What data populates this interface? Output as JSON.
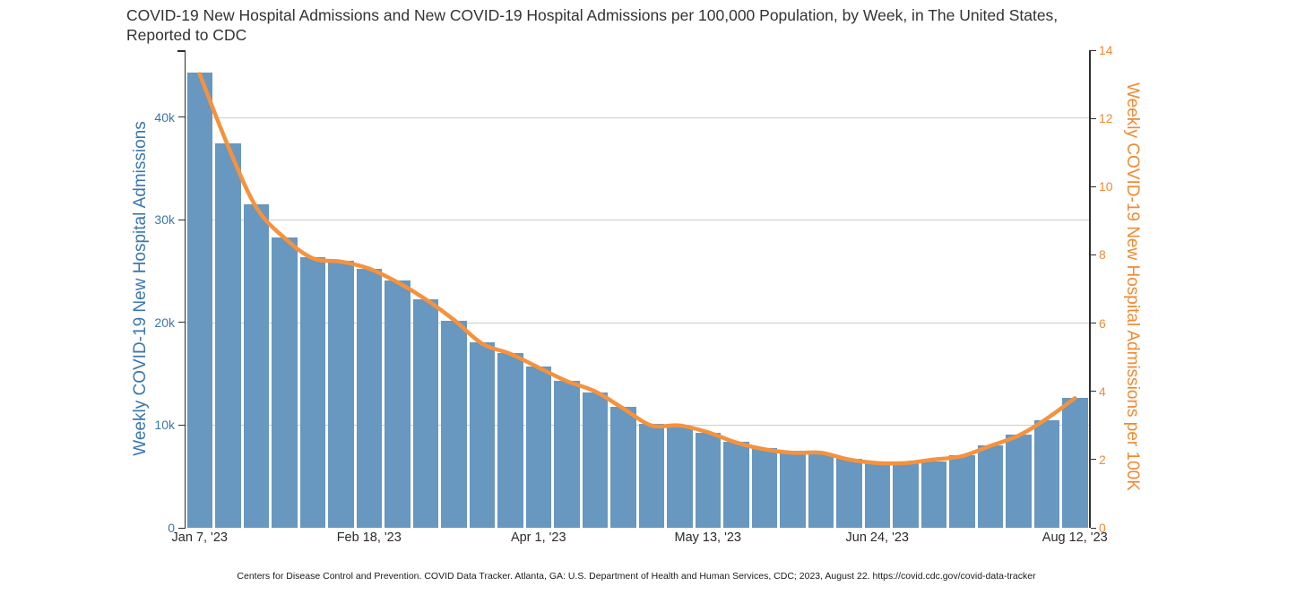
{
  "title": {
    "full": "COVID-19 New Hospital Admissions and New COVID-19 Hospital Admissions per 100,000 Population, by Week, in The United States, Reported to CDC",
    "line1": "COVID-19 New Hospital Admissions and New COVID-19 Hospital Admissions per 100,000 Population, by Week, in The United States,",
    "line2": "Reported to CDC"
  },
  "footer": "Centers for Disease Control and Prevention. COVID Data Tracker. Atlanta, GA: U.S. Department of Health and Human Services, CDC; 2023, August 22. https://covid.cdc.gov/covid-data-tracker",
  "left_axis": {
    "title": "Weekly COVID-19 New Hospital Admissions",
    "text_color": "#3c76ae",
    "ticks": [
      {
        "label": "0",
        "value": 0
      },
      {
        "label": "10k",
        "value": 10000
      },
      {
        "label": "20k",
        "value": 20000
      },
      {
        "label": "30k",
        "value": 30000
      },
      {
        "label": "40k",
        "value": 40000
      }
    ]
  },
  "right_axis": {
    "title": "Weekly COVID-19 New Hospital Admissions per 100K",
    "text_color": "#ee8b32",
    "ticks": [
      {
        "label": "0",
        "value": 0
      },
      {
        "label": "2",
        "value": 2
      },
      {
        "label": "4",
        "value": 4
      },
      {
        "label": "6",
        "value": 6
      },
      {
        "label": "8",
        "value": 8
      },
      {
        "label": "10",
        "value": 10
      },
      {
        "label": "12",
        "value": 12
      },
      {
        "label": "14",
        "value": 14
      }
    ]
  },
  "x_axis": {
    "tick_labels": [
      {
        "label": "Jan 7, '23",
        "index": 0
      },
      {
        "label": "Feb 18, '23",
        "index": 6
      },
      {
        "label": "Apr 1, '23",
        "index": 12
      },
      {
        "label": "May 13, '23",
        "index": 18
      },
      {
        "label": "Jun 24, '23",
        "index": 24
      },
      {
        "label": "Aug 12, '23",
        "index": 31
      }
    ]
  },
  "colors": {
    "bar": "#6897c0",
    "line": "#f5923e",
    "grid": "#cccccc",
    "axis": "#2e2e2e",
    "title_text": "#333333"
  },
  "chart_data": {
    "type": "bar",
    "title": "COVID-19 New Hospital Admissions and New COVID-19 Hospital Admissions per 100,000 Population, by Week, in The United States, Reported to CDC",
    "categories": [
      "Jan 7, '23",
      "Jan 14, '23",
      "Jan 21, '23",
      "Jan 28, '23",
      "Feb 4, '23",
      "Feb 11, '23",
      "Feb 18, '23",
      "Feb 25, '23",
      "Mar 4, '23",
      "Mar 11, '23",
      "Mar 18, '23",
      "Mar 25, '23",
      "Apr 1, '23",
      "Apr 8, '23",
      "Apr 15, '23",
      "Apr 22, '23",
      "Apr 29, '23",
      "May 6, '23",
      "May 13, '23",
      "May 20, '23",
      "May 27, '23",
      "Jun 3, '23",
      "Jun 10, '23",
      "Jun 17, '23",
      "Jun 24, '23",
      "Jul 1, '23",
      "Jul 8, '23",
      "Jul 15, '23",
      "Jul 22, '23",
      "Jul 29, '23",
      "Aug 5, '23",
      "Aug 12, '23"
    ],
    "series": [
      {
        "name": "Weekly COVID-19 New Hospital Admissions",
        "type": "bar",
        "axis": "left",
        "values": [
          44400,
          37500,
          31500,
          28300,
          26400,
          26000,
          25200,
          24100,
          22300,
          20200,
          18100,
          17000,
          15700,
          14300,
          13200,
          11800,
          10100,
          9900,
          9300,
          8400,
          7800,
          7500,
          7200,
          6700,
          6500,
          6400,
          6500,
          7100,
          8000,
          9100,
          10500,
          12700
        ]
      },
      {
        "name": "Weekly COVID-19 New Hospital Admissions per 100K",
        "type": "line",
        "axis": "right",
        "values": [
          13.3,
          11.2,
          9.4,
          8.5,
          7.9,
          7.8,
          7.6,
          7.2,
          6.7,
          6.1,
          5.4,
          5.1,
          4.7,
          4.3,
          4.0,
          3.5,
          3.0,
          3.0,
          2.8,
          2.5,
          2.3,
          2.2,
          2.2,
          2.0,
          1.9,
          1.9,
          2.0,
          2.1,
          2.4,
          2.7,
          3.2,
          3.8
        ]
      }
    ],
    "left_axis_range": [
      0,
      46550
    ],
    "right_axis_range": [
      0,
      14
    ],
    "xlabel": "",
    "ylabel_left": "Weekly COVID-19 New Hospital Admissions",
    "ylabel_right": "Weekly COVID-19 New Hospital Admissions per 100K",
    "grid": "horizontal",
    "legend": "none",
    "x_tick_labels": [
      "Jan 7, '23",
      "Feb 18, '23",
      "Apr 1, '23",
      "May 13, '23",
      "Jun 24, '23",
      "Aug 12, '23"
    ]
  }
}
